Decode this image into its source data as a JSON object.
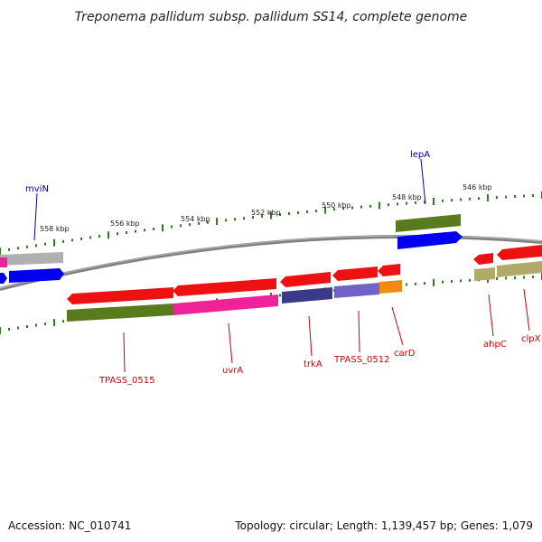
{
  "title": "Treponema pallidum subsp. pallidum SS14, complete genome",
  "footer": {
    "accession": "Accession: NC_010741",
    "summary": "Topology: circular; Length: 1,139,457 bp; Genes: 1,079"
  },
  "colors": {
    "backbone": "#808080",
    "ticks": "#2e7d1e",
    "red_label": "#cc0000",
    "blue_label": "#0000aa",
    "red": "#ee1111",
    "blue": "#0000ee",
    "olive": "#5a7a1e",
    "gray": "#b0b0b0",
    "pink": "#ee2299",
    "navy": "#3a3a88",
    "slate": "#6f63c8",
    "orange": "#f08a10",
    "khaki": "#b0aa66"
  },
  "kbp_ticks": [
    {
      "label": "558 kbp",
      "pos": 558
    },
    {
      "label": "556 kbp",
      "pos": 556
    },
    {
      "label": "554 kbp",
      "pos": 554
    },
    {
      "label": "552 kbp",
      "pos": 552
    },
    {
      "label": "550 kbp",
      "pos": 550
    },
    {
      "label": "548 kbp",
      "pos": 548
    },
    {
      "label": "546 kbp",
      "pos": 546
    }
  ],
  "gene_labels": [
    {
      "name": "mviN",
      "color": "blue"
    },
    {
      "name": "lepA",
      "color": "blue"
    },
    {
      "name": "TPASS_0515",
      "color": "red"
    },
    {
      "name": "uvrA",
      "color": "red"
    },
    {
      "name": "trkA",
      "color": "red"
    },
    {
      "name": "TPASS_0512",
      "color": "red"
    },
    {
      "name": "carD",
      "color": "red"
    },
    {
      "name": "ahpC",
      "color": "red"
    },
    {
      "name": "clpX",
      "color": "red"
    }
  ]
}
